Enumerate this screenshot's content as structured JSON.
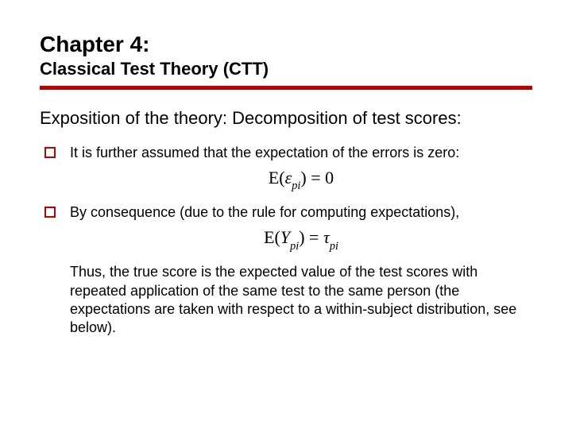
{
  "header": {
    "chapter": "Chapter 4:",
    "subtitle": "Classical Test Theory (CTT)"
  },
  "divider_color": "#c00000",
  "section_heading": "Exposition of the theory: Decomposition of test scores:",
  "bullets": [
    {
      "text": "It is further assumed that the expectation of the errors is zero:",
      "formula_html": "E(<span class='italic'>&epsilon;</span><span class='sub'>pi</span>) = 0"
    },
    {
      "text": "By consequence (due to the rule for computing expectations),",
      "formula_html": "E(<span class='italic'>Y</span><span class='sub'>pi</span>) = <span class='italic'>&tau;</span><span class='sub'>pi</span>"
    }
  ],
  "conclusion": "Thus, the true score is the expected value of the test scores with repeated application of the same test to the same person (the expectations are taken with respect to a within-subject distribution, see below).",
  "typography": {
    "body_font": "Verdana",
    "formula_font": "Times New Roman",
    "title_fontsize_pt": 28,
    "subtitle_fontsize_pt": 22,
    "body_fontsize_pt": 18,
    "formula_fontsize_pt": 22,
    "text_color": "#000000",
    "accent_color": "#c00000",
    "background_color": "#ffffff"
  }
}
